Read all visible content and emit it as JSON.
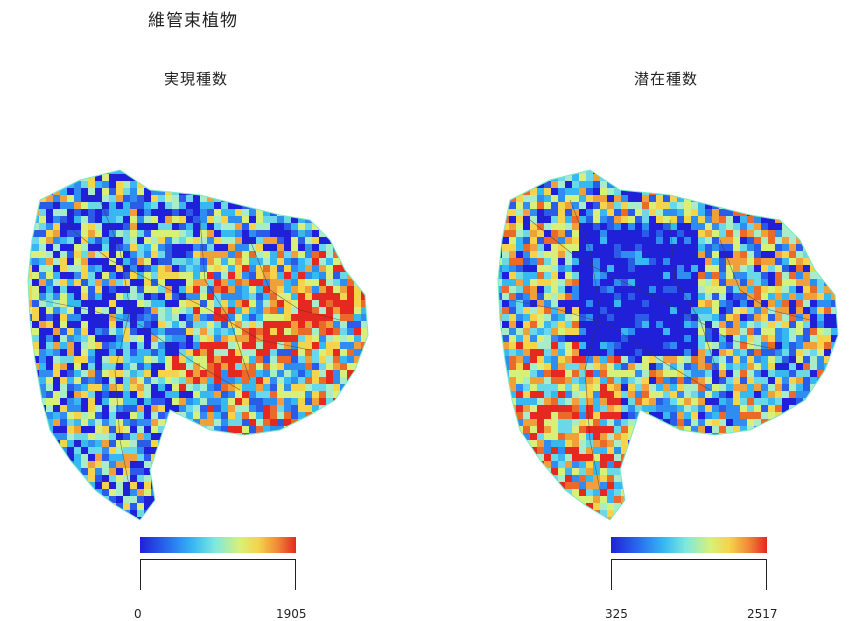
{
  "title": "維管束植物",
  "panels": [
    {
      "id": "observed",
      "title": "実現種数",
      "legend": {
        "min": "0",
        "max": "1905"
      },
      "value_range": [
        0,
        1905
      ]
    },
    {
      "id": "potential",
      "title": "潜在種数",
      "legend": {
        "min": "325",
        "max": "2517"
      },
      "value_range": [
        325,
        2517
      ]
    }
  ],
  "colors": {
    "low": "#2020d8",
    "mid": "#7ee8e0",
    "high": "#e52820"
  }
}
